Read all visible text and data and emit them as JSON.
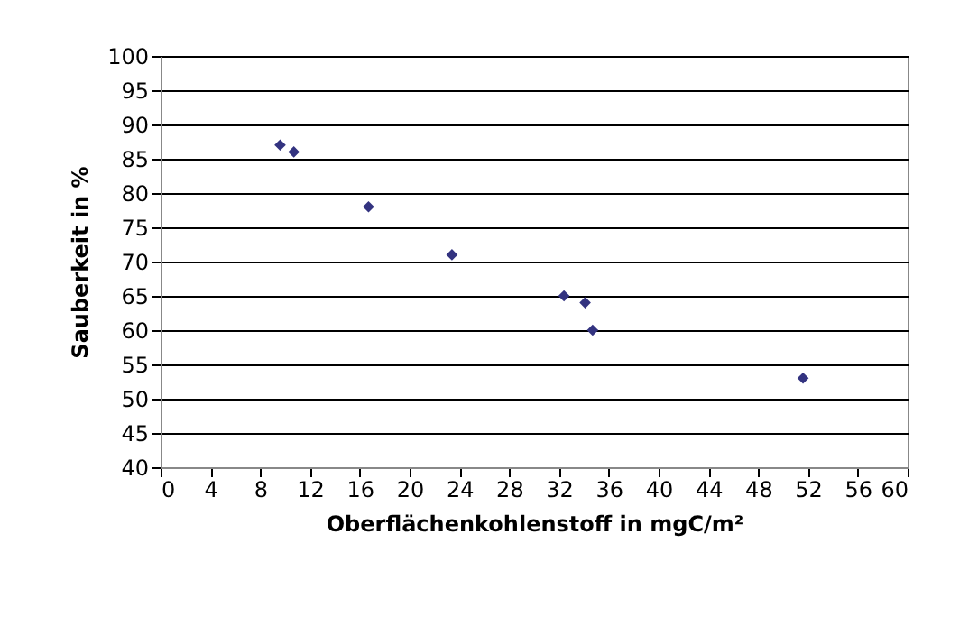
{
  "chart_data": {
    "type": "scatter",
    "xlabel": "Oberflächenkohlenstoff in mgC/m²",
    "ylabel": "Sauberkeit in %",
    "x": [
      9.6,
      10.7,
      16.7,
      23.4,
      32.4,
      34.1,
      34.7,
      51.6
    ],
    "series": [
      {
        "color": "#333380",
        "values": [
          87,
          86,
          78,
          71,
          65,
          64,
          60,
          53
        ]
      }
    ],
    "xlim": [
      0,
      60
    ],
    "xticks": [
      0,
      4,
      8,
      12,
      16,
      20,
      24,
      28,
      32,
      36,
      40,
      44,
      48,
      52,
      56,
      60
    ],
    "ylim": [
      40,
      100
    ],
    "yticks": [
      40,
      45,
      50,
      55,
      60,
      65,
      70,
      75,
      80,
      85,
      90,
      95,
      100
    ],
    "grid": "y",
    "marker": "diamond",
    "legend": false
  }
}
